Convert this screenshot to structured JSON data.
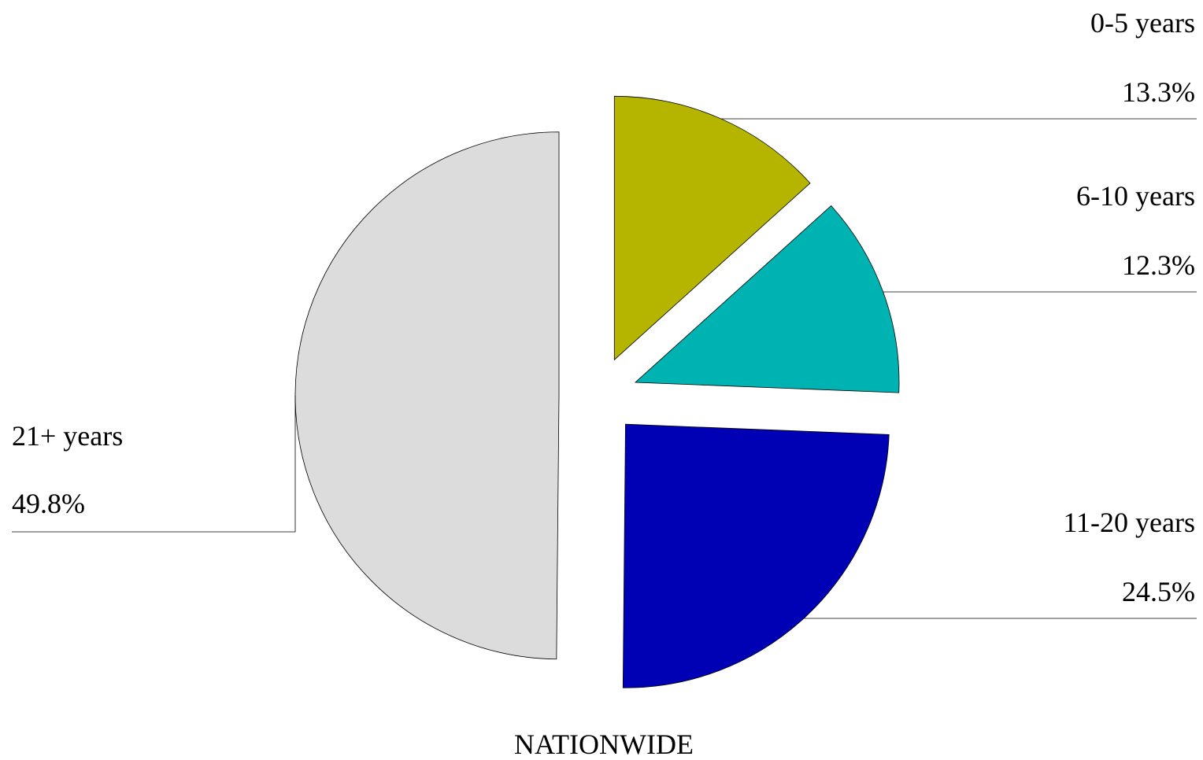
{
  "chart_data": {
    "type": "pie",
    "title": "NATIONWIDE",
    "categories": [
      "0-5 years",
      "6-10 years",
      "11-20 years",
      "21+ years"
    ],
    "values": [
      13.3,
      12.3,
      24.5,
      49.8
    ],
    "value_labels": [
      "13.3%",
      "12.3%",
      "24.5%",
      "49.8%"
    ],
    "colors": [
      "#b5b500",
      "#00b3b3",
      "#0000b5",
      "#dcdcdc"
    ]
  }
}
